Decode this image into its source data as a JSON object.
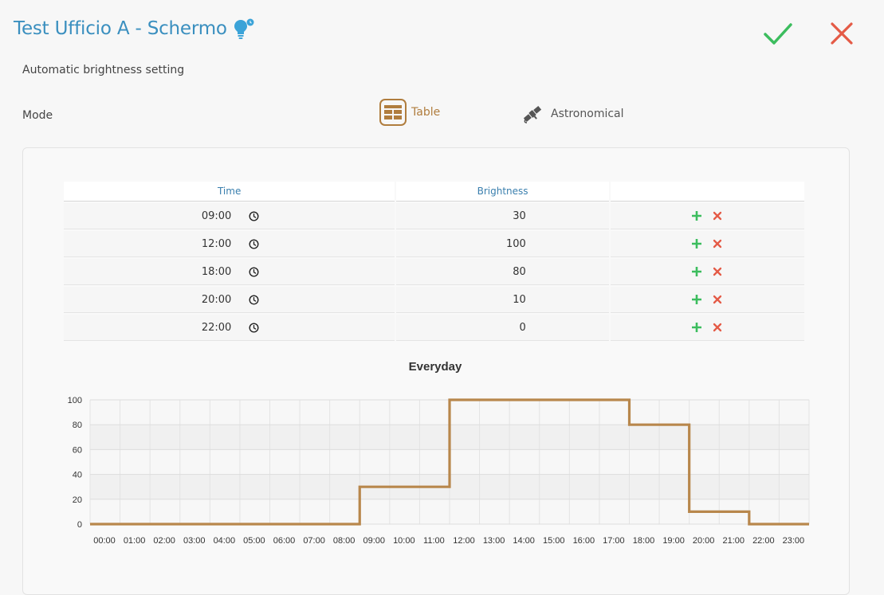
{
  "header": {
    "title": "Test Ufficio A - Schermo",
    "bulb_icon": "lightbulb-clock-icon",
    "confirm_icon": "check-icon",
    "cancel_icon": "close-icon",
    "colors": {
      "title": "#3a8fbf",
      "confirm": "#3cbd5e",
      "cancel": "#e45a46"
    }
  },
  "subtitle": "Automatic brightness setting",
  "mode": {
    "label": "Mode",
    "options": [
      {
        "label": "Table",
        "icon": "table-icon",
        "selected": true
      },
      {
        "label": "Astronomical",
        "icon": "satellite-icon",
        "selected": false
      }
    ],
    "accent": "#b07d3e"
  },
  "table": {
    "headers": [
      "Time",
      "Brightness",
      ""
    ],
    "rows": [
      {
        "time": "09:00",
        "brightness": "30"
      },
      {
        "time": "12:00",
        "brightness": "100"
      },
      {
        "time": "18:00",
        "brightness": "80"
      },
      {
        "time": "20:00",
        "brightness": "10"
      },
      {
        "time": "22:00",
        "brightness": "0"
      }
    ],
    "row_icons": [
      "clock-icon",
      "plus-icon",
      "x-icon"
    ]
  },
  "chart_data": {
    "type": "line",
    "step": true,
    "title": "Everyday",
    "xlabel": "",
    "ylabel": "",
    "x_ticks": [
      "00:00",
      "01:00",
      "02:00",
      "03:00",
      "04:00",
      "05:00",
      "06:00",
      "07:00",
      "08:00",
      "09:00",
      "10:00",
      "11:00",
      "12:00",
      "13:00",
      "14:00",
      "15:00",
      "16:00",
      "17:00",
      "18:00",
      "19:00",
      "20:00",
      "21:00",
      "22:00",
      "23:00"
    ],
    "y_ticks": [
      0,
      20,
      40,
      60,
      80,
      100
    ],
    "ylim": [
      0,
      100
    ],
    "xlim": [
      0,
      24
    ],
    "series": [
      {
        "x": [
          0,
          9,
          12,
          18,
          20,
          22,
          24
        ],
        "y": [
          0,
          30,
          100,
          80,
          10,
          0,
          0
        ]
      }
    ],
    "line_color": "#b8874c",
    "grid": true
  }
}
